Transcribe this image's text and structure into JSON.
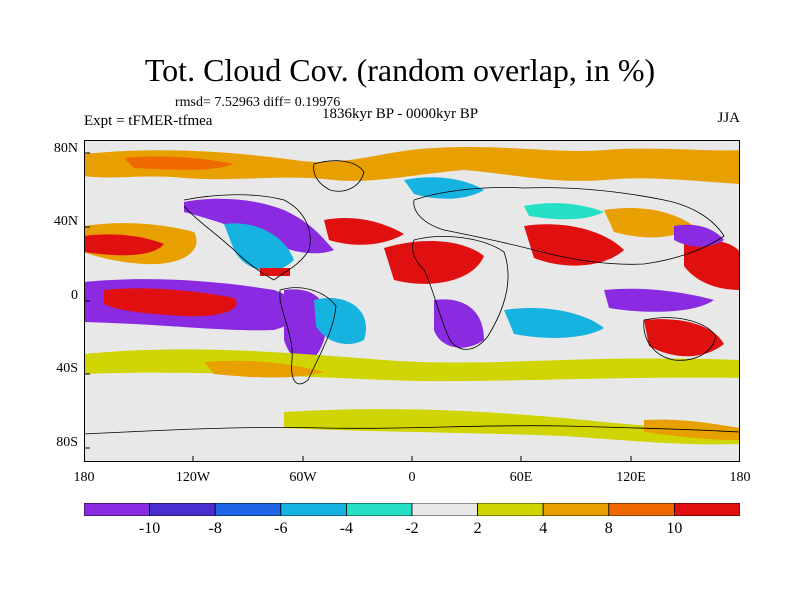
{
  "title": "Tot. Cloud Cov. (random overlap, in %)",
  "stats": "rmsd= 7.52963 diff= 0.19976",
  "experiment": "Expt = tFMER-tfmea",
  "period": "1836kyr BP - 0000kyr BP",
  "season": "JJA",
  "lat_labels": [
    "80N",
    "40N",
    "0",
    "40S",
    "80S"
  ],
  "lon_labels": [
    "180",
    "120W",
    "60W",
    "0",
    "60E",
    "120E",
    "180"
  ],
  "colorbar": {
    "colors": [
      "#8a2be2",
      "#4b2ed0",
      "#1e64e6",
      "#17b3e0",
      "#26e0c6",
      "#e8e8e8",
      "#d0d400",
      "#e8a000",
      "#ee6a00",
      "#e01010"
    ],
    "labels": [
      "-10",
      "-8",
      "-6",
      "-4",
      "-2",
      "2",
      "4",
      "8",
      "10"
    ]
  },
  "colors": {
    "neutral": "#e8e8e8",
    "coast": "#000000"
  }
}
